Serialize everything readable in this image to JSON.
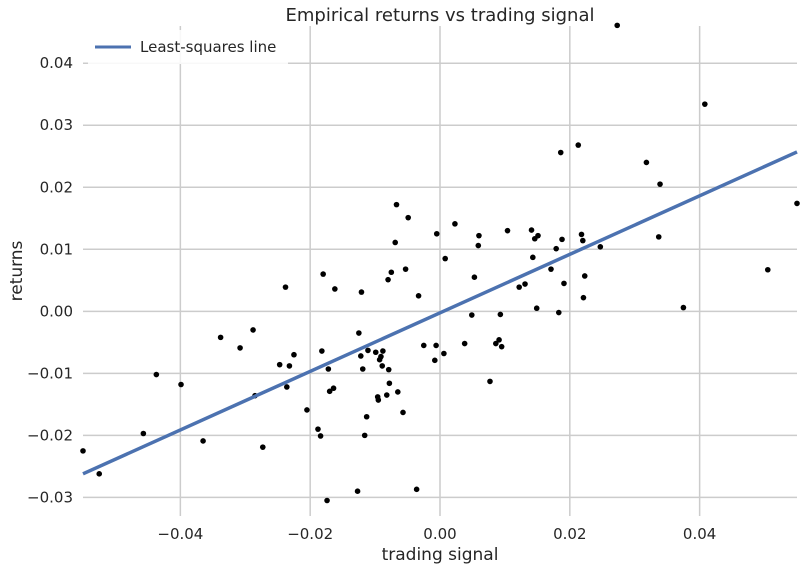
{
  "chart_data": {
    "type": "scatter",
    "title": "Empirical returns vs trading signal",
    "xlabel": "trading signal",
    "ylabel": "returns",
    "xlim": [
      -0.055,
      0.055
    ],
    "ylim": [
      -0.033,
      0.046
    ],
    "xticks": [
      -0.04,
      -0.02,
      0.0,
      0.02,
      0.04
    ],
    "xtick_labels": [
      "−0.04",
      "−0.02",
      "0.00",
      "0.02",
      "0.04"
    ],
    "yticks": [
      -0.03,
      -0.02,
      -0.01,
      0.0,
      0.01,
      0.02,
      0.03,
      0.04
    ],
    "ytick_labels": [
      "−0.03",
      "−0.02",
      "−0.01",
      "0.00",
      "0.01",
      "0.02",
      "0.03",
      "0.04"
    ],
    "grid": true,
    "legend": {
      "position": "top-left",
      "entries": [
        "Least-squares line"
      ]
    },
    "colors": {
      "line": "#4c72b0",
      "points": "#000000",
      "grid": "#cccccc"
    },
    "series": [
      {
        "kind": "points",
        "points": [
          [
            -0.055,
            -0.0225
          ],
          [
            -0.0525,
            -0.0262
          ],
          [
            -0.0475,
            -0.0335
          ],
          [
            -0.0457,
            -0.0197
          ],
          [
            -0.0437,
            -0.0102
          ],
          [
            -0.0399,
            -0.0118
          ],
          [
            -0.0365,
            -0.0209
          ],
          [
            -0.0338,
            -0.0042
          ],
          [
            -0.0308,
            -0.0059
          ],
          [
            -0.0288,
            -0.003
          ],
          [
            -0.0285,
            -0.0136
          ],
          [
            -0.0273,
            -0.0219
          ],
          [
            -0.0247,
            -0.0086
          ],
          [
            -0.0238,
            0.0039
          ],
          [
            -0.0236,
            -0.0122
          ],
          [
            -0.0232,
            -0.0088
          ],
          [
            -0.0225,
            -0.007
          ],
          [
            -0.0205,
            -0.0159
          ],
          [
            -0.0188,
            -0.019
          ],
          [
            -0.0184,
            -0.0201
          ],
          [
            -0.0182,
            -0.0064
          ],
          [
            -0.018,
            0.006
          ],
          [
            -0.0174,
            -0.0305
          ],
          [
            -0.0172,
            -0.0093
          ],
          [
            -0.017,
            -0.0129
          ],
          [
            -0.0164,
            -0.0124
          ],
          [
            -0.0162,
            0.0036
          ],
          [
            -0.0127,
            -0.029
          ],
          [
            -0.0125,
            -0.0035
          ],
          [
            -0.0122,
            -0.0072
          ],
          [
            -0.0121,
            0.0031
          ],
          [
            -0.0119,
            -0.0093
          ],
          [
            -0.0116,
            -0.02
          ],
          [
            -0.0113,
            -0.017
          ],
          [
            -0.0111,
            -0.0063
          ],
          [
            -0.0099,
            -0.0066
          ],
          [
            -0.0096,
            -0.0138
          ],
          [
            -0.0095,
            -0.0143
          ],
          [
            -0.0093,
            -0.0078
          ],
          [
            -0.0091,
            -0.0073
          ],
          [
            -0.0089,
            -0.0088
          ],
          [
            -0.0088,
            -0.0064
          ],
          [
            -0.0082,
            -0.0135
          ],
          [
            -0.008,
            0.0051
          ],
          [
            -0.0079,
            -0.0094
          ],
          [
            -0.0078,
            -0.0116
          ],
          [
            -0.0075,
            0.0063
          ],
          [
            -0.0069,
            0.0111
          ],
          [
            -0.0067,
            0.0172
          ],
          [
            -0.0065,
            -0.013
          ],
          [
            -0.0057,
            -0.0163
          ],
          [
            -0.0053,
            0.0068
          ],
          [
            -0.0049,
            0.0151
          ],
          [
            -0.0036,
            -0.0287
          ],
          [
            -0.0033,
            0.0025
          ],
          [
            -0.0025,
            -0.0055
          ],
          [
            -0.0008,
            -0.0079
          ],
          [
            -0.0006,
            -0.0055
          ],
          [
            -0.0005,
            0.0125
          ],
          [
            0.0006,
            -0.0068
          ],
          [
            0.0008,
            0.0085
          ],
          [
            0.0023,
            0.0141
          ],
          [
            0.0038,
            -0.0052
          ],
          [
            0.0049,
            -0.0006
          ],
          [
            0.0053,
            0.0055
          ],
          [
            0.0059,
            0.0106
          ],
          [
            0.006,
            0.0122
          ],
          [
            0.0077,
            -0.0113
          ],
          [
            0.0086,
            -0.0052
          ],
          [
            0.0091,
            -0.0046
          ],
          [
            0.0093,
            -0.0005
          ],
          [
            0.0095,
            -0.0057
          ],
          [
            0.0104,
            0.013
          ],
          [
            0.0122,
            0.0039
          ],
          [
            0.0131,
            0.0044
          ],
          [
            0.0141,
            0.0131
          ],
          [
            0.0143,
            0.0087
          ],
          [
            0.0146,
            0.0117
          ],
          [
            0.0149,
            0.0005
          ],
          [
            0.0151,
            0.0122
          ],
          [
            0.0171,
            0.0068
          ],
          [
            0.0179,
            0.0101
          ],
          [
            0.0183,
            -0.0002
          ],
          [
            0.0186,
            0.0256
          ],
          [
            0.0188,
            0.0116
          ],
          [
            0.0191,
            0.0045
          ],
          [
            0.0213,
            0.0268
          ],
          [
            0.0218,
            0.0124
          ],
          [
            0.022,
            0.0114
          ],
          [
            0.0221,
            0.0022
          ],
          [
            0.0223,
            0.0057
          ],
          [
            0.0247,
            0.0104
          ],
          [
            0.0273,
            0.0461
          ],
          [
            0.0318,
            0.024
          ],
          [
            0.0337,
            0.012
          ],
          [
            0.0339,
            0.0205
          ],
          [
            0.0375,
            0.0006
          ],
          [
            0.0408,
            0.0334
          ],
          [
            0.0505,
            0.0067
          ],
          [
            0.055,
            0.0174
          ]
        ]
      },
      {
        "kind": "line",
        "name": "Least-squares line",
        "x": [
          -0.055,
          0.055
        ],
        "y": [
          -0.0262,
          0.0257
        ]
      }
    ]
  }
}
